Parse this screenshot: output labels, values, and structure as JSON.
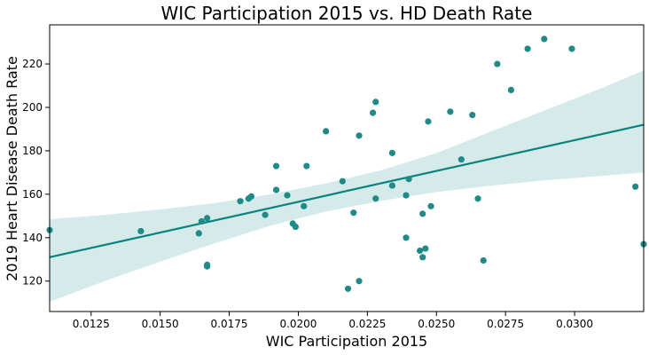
{
  "chart_data": {
    "type": "scatter",
    "title": "WIC Participation 2015 vs. HD Death Rate",
    "xlabel": "WIC Participation 2015",
    "ylabel": "2019 Heart Disease Death Rate",
    "xlim": [
      0.011,
      0.0325
    ],
    "ylim": [
      106,
      238
    ],
    "xticks": [
      0.0125,
      0.015,
      0.0175,
      0.02,
      0.0225,
      0.025,
      0.0275,
      0.03
    ],
    "xtick_labels": [
      "0.0125",
      "0.0150",
      "0.0175",
      "0.0200",
      "0.0225",
      "0.0250",
      "0.0275",
      "0.0300"
    ],
    "yticks": [
      120,
      140,
      160,
      180,
      200,
      220
    ],
    "ytick_labels": [
      "120",
      "140",
      "160",
      "180",
      "200",
      "220"
    ],
    "grid": false,
    "colors": {
      "points": "#1f8a87",
      "line": "#098281",
      "band": "#d5ebea"
    },
    "points": [
      {
        "x": 0.011,
        "y": 143.5
      },
      {
        "x": 0.0143,
        "y": 143.0
      },
      {
        "x": 0.0164,
        "y": 142.0
      },
      {
        "x": 0.0165,
        "y": 147.5
      },
      {
        "x": 0.0167,
        "y": 149.0
      },
      {
        "x": 0.0167,
        "y": 127.5
      },
      {
        "x": 0.0167,
        "y": 126.8
      },
      {
        "x": 0.0179,
        "y": 156.8
      },
      {
        "x": 0.0182,
        "y": 158.0
      },
      {
        "x": 0.0183,
        "y": 159.0
      },
      {
        "x": 0.0188,
        "y": 150.5
      },
      {
        "x": 0.0192,
        "y": 173.0
      },
      {
        "x": 0.0192,
        "y": 162.0
      },
      {
        "x": 0.0196,
        "y": 159.5
      },
      {
        "x": 0.0198,
        "y": 146.5
      },
      {
        "x": 0.0199,
        "y": 145.0
      },
      {
        "x": 0.0202,
        "y": 154.5
      },
      {
        "x": 0.0203,
        "y": 173.0
      },
      {
        "x": 0.021,
        "y": 189.0
      },
      {
        "x": 0.0216,
        "y": 166.0
      },
      {
        "x": 0.0218,
        "y": 116.5
      },
      {
        "x": 0.022,
        "y": 151.5
      },
      {
        "x": 0.0222,
        "y": 187.0
      },
      {
        "x": 0.0222,
        "y": 120.0
      },
      {
        "x": 0.0227,
        "y": 197.5
      },
      {
        "x": 0.0228,
        "y": 202.5
      },
      {
        "x": 0.0228,
        "y": 158.0
      },
      {
        "x": 0.0234,
        "y": 179.0
      },
      {
        "x": 0.0234,
        "y": 164.0
      },
      {
        "x": 0.0239,
        "y": 159.5
      },
      {
        "x": 0.0239,
        "y": 140.0
      },
      {
        "x": 0.024,
        "y": 167.0
      },
      {
        "x": 0.0244,
        "y": 134.0
      },
      {
        "x": 0.0245,
        "y": 131.0
      },
      {
        "x": 0.0245,
        "y": 151.0
      },
      {
        "x": 0.0246,
        "y": 135.0
      },
      {
        "x": 0.0247,
        "y": 193.5
      },
      {
        "x": 0.0248,
        "y": 154.5
      },
      {
        "x": 0.0255,
        "y": 198.0
      },
      {
        "x": 0.0259,
        "y": 176.0
      },
      {
        "x": 0.0263,
        "y": 196.5
      },
      {
        "x": 0.0265,
        "y": 158.0
      },
      {
        "x": 0.0267,
        "y": 129.5
      },
      {
        "x": 0.0272,
        "y": 220.0
      },
      {
        "x": 0.0277,
        "y": 208.0
      },
      {
        "x": 0.0283,
        "y": 227.0
      },
      {
        "x": 0.0289,
        "y": 231.5
      },
      {
        "x": 0.0299,
        "y": 227.0
      },
      {
        "x": 0.0322,
        "y": 163.5
      },
      {
        "x": 0.0325,
        "y": 137.0
      }
    ],
    "regression": {
      "x": [
        0.011,
        0.0325
      ],
      "y": [
        131.0,
        192.0
      ]
    },
    "ci_band": [
      {
        "x": 0.011,
        "lower": 110.5,
        "upper": 148.5
      },
      {
        "x": 0.013,
        "lower": 120.0,
        "upper": 150.5
      },
      {
        "x": 0.015,
        "lower": 129.0,
        "upper": 153.0
      },
      {
        "x": 0.017,
        "lower": 137.5,
        "upper": 156.0
      },
      {
        "x": 0.019,
        "lower": 145.5,
        "upper": 160.0
      },
      {
        "x": 0.021,
        "lower": 152.0,
        "upper": 165.0
      },
      {
        "x": 0.023,
        "lower": 157.0,
        "upper": 171.0
      },
      {
        "x": 0.025,
        "lower": 161.0,
        "upper": 179.0
      },
      {
        "x": 0.027,
        "lower": 164.0,
        "upper": 189.0
      },
      {
        "x": 0.029,
        "lower": 166.5,
        "upper": 199.0
      },
      {
        "x": 0.031,
        "lower": 168.5,
        "upper": 209.0
      },
      {
        "x": 0.0325,
        "lower": 170.0,
        "upper": 217.0
      }
    ]
  }
}
